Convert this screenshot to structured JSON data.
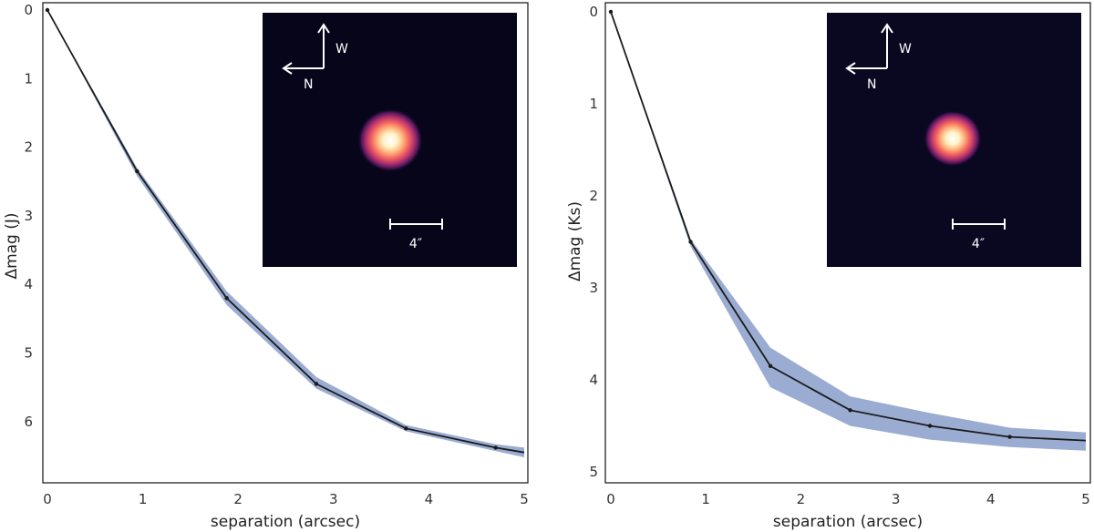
{
  "colors": {
    "band": "#8fa3cc",
    "line": "#1a1a1a",
    "axes": "#222222",
    "inset_bg": "#07051a",
    "inset_text": "#ffffff"
  },
  "inset_labels": {
    "north": "N",
    "west": "W",
    "scale": "4″"
  },
  "chart_data": [
    {
      "type": "line",
      "xlabel": "separation (arcsec)",
      "ylabel": "Δmag (J)",
      "xlim": [
        0,
        5
      ],
      "ylim": [
        6.9,
        0
      ],
      "y_inverted": true,
      "grid": false,
      "x": [
        0,
        0.94,
        1.88,
        2.82,
        3.76,
        4.7,
        5.0
      ],
      "y": [
        0.0,
        2.35,
        4.2,
        5.45,
        6.1,
        6.38,
        6.45
      ],
      "band_lower": [
        0.0,
        2.3,
        4.1,
        5.35,
        6.05,
        6.33,
        6.38
      ],
      "band_upper": [
        0.0,
        2.42,
        4.3,
        5.52,
        6.14,
        6.43,
        6.52
      ],
      "xticks": [
        "0",
        "1",
        "2",
        "3",
        "4",
        "5"
      ],
      "yticks": [
        "0",
        "1",
        "2",
        "3",
        "4",
        "5",
        "6"
      ],
      "inset": {
        "type": "image",
        "source_peak_brightness": 1.0,
        "description_source": "stellar PSF"
      }
    },
    {
      "type": "line",
      "xlabel": "separation (arcsec)",
      "ylabel": "Δmag (Ks)",
      "xlim": [
        0,
        5
      ],
      "ylim": [
        5.1,
        -0.05
      ],
      "y_inverted": true,
      "grid": false,
      "x": [
        0,
        0.84,
        1.68,
        2.52,
        3.36,
        4.2,
        5.0
      ],
      "y": [
        0.0,
        2.5,
        3.85,
        4.33,
        4.5,
        4.62,
        4.66
      ],
      "band_lower": [
        0.0,
        2.47,
        3.65,
        4.18,
        4.36,
        4.52,
        4.57
      ],
      "band_upper": [
        0.0,
        2.55,
        4.08,
        4.5,
        4.65,
        4.73,
        4.77
      ],
      "xticks": [
        "0",
        "1",
        "2",
        "3",
        "4",
        "5"
      ],
      "yticks": [
        "0",
        "1",
        "2",
        "3",
        "4",
        "5"
      ],
      "inset": {
        "type": "image",
        "source_peak_brightness": 1.0,
        "description_source": "stellar PSF"
      }
    }
  ]
}
